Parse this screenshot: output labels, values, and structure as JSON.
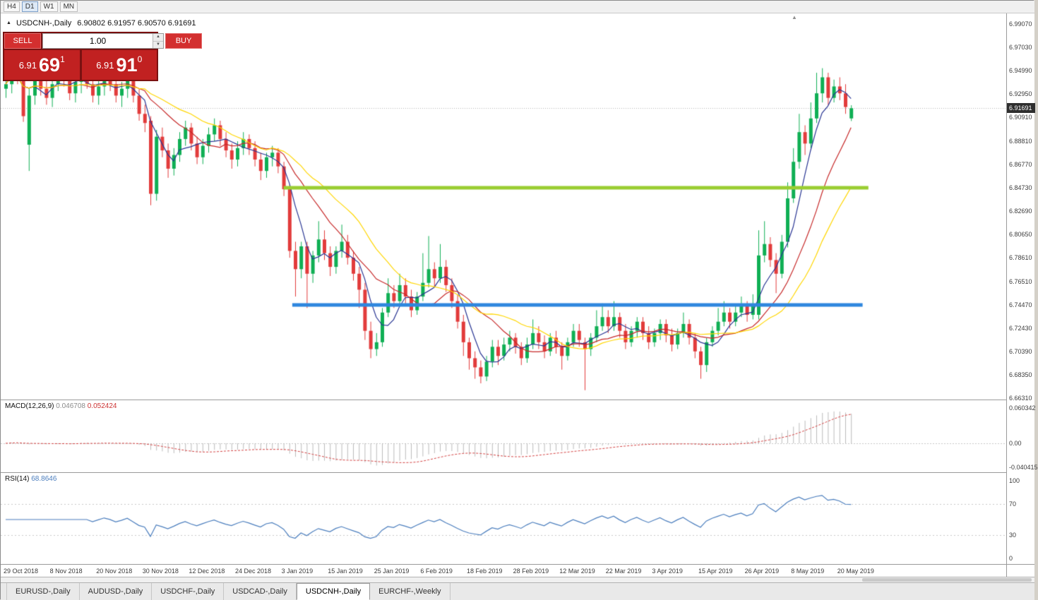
{
  "toolbar": {
    "timeframes": [
      "H4",
      "D1",
      "W1",
      "MN"
    ],
    "active": "D1"
  },
  "chart": {
    "title": "USDCNH-,Daily",
    "ohlc": "6.90802 6.91957 6.90570 6.91691"
  },
  "trade_panel": {
    "sell_label": "SELL",
    "buy_label": "BUY",
    "volume": "1.00",
    "bid": {
      "prefix": "6.91",
      "big": "69",
      "sup": "1"
    },
    "ask": {
      "prefix": "6.91",
      "big": "91",
      "sup": "0"
    }
  },
  "price_axis": {
    "labels": [
      "6.99070",
      "6.97030",
      "6.94990",
      "6.92950",
      "6.90910",
      "6.88810",
      "6.86770",
      "6.84730",
      "6.82690",
      "6.80650",
      "6.78610",
      "6.76510",
      "6.74470",
      "6.72430",
      "6.70390",
      "6.68350",
      "6.66310"
    ],
    "current": "6.91691"
  },
  "macd": {
    "label": "MACD(12,26,9)",
    "value_main": "0.046708",
    "value_signal": "0.052424",
    "axis": [
      "0.060342",
      "0.00",
      "-0.040415"
    ]
  },
  "rsi": {
    "label": "RSI(14)",
    "value": "68.8646"
  },
  "tabs": [
    {
      "label": "EURUSD-,Daily",
      "active": false
    },
    {
      "label": "AUDUSD-,Daily",
      "active": false
    },
    {
      "label": "USDCHF-,Daily",
      "active": false
    },
    {
      "label": "USDCAD-,Daily",
      "active": false
    },
    {
      "label": "USDCNH-,Daily",
      "active": true
    },
    {
      "label": "EURCHF-,Weekly",
      "active": false
    }
  ],
  "colors": {
    "candle_up": "#0faf54",
    "candle_down": "#e23b3b",
    "ma_fast": "#283593",
    "ma_mid": "#c62828",
    "ma_slow": "#ffd600",
    "level_green": "#9ACD32",
    "level_blue": "#2e86de",
    "macd_hist": "#bbbbbb",
    "macd_signal": "#d23f3f",
    "rsi_line": "#4a7dbd",
    "grid_dotted": "#b4b4b4"
  },
  "chart_data": {
    "type": "candlestick",
    "symbol": "USDCNH-",
    "timeframe": "Daily",
    "current_price": 6.91691,
    "last_ohlc": {
      "open": 6.90802,
      "high": 6.91957,
      "low": 6.9057,
      "close": 6.91691
    },
    "y_max": 6.9907,
    "y_min": 6.6631,
    "price_step": 0.0204,
    "x_ticks": [
      {
        "index": 0,
        "label": "29 Oct 2018"
      },
      {
        "index": 8,
        "label": "8 Nov 2018"
      },
      {
        "index": 16,
        "label": "20 Nov 2018"
      },
      {
        "index": 24,
        "label": "30 Nov 2018"
      },
      {
        "index": 32,
        "label": "12 Dec 2018"
      },
      {
        "index": 40,
        "label": "24 Dec 2018"
      },
      {
        "index": 48,
        "label": "3 Jan 2019"
      },
      {
        "index": 56,
        "label": "15 Jan 2019"
      },
      {
        "index": 64,
        "label": "25 Jan 2019"
      },
      {
        "index": 72,
        "label": "6 Feb 2019"
      },
      {
        "index": 80,
        "label": "18 Feb 2019"
      },
      {
        "index": 88,
        "label": "28 Feb 2019"
      },
      {
        "index": 96,
        "label": "12 Mar 2019"
      },
      {
        "index": 104,
        "label": "22 Mar 2019"
      },
      {
        "index": 112,
        "label": "3 Apr 2019"
      },
      {
        "index": 120,
        "label": "15 Apr 2019"
      },
      {
        "index": 128,
        "label": "26 Apr 2019"
      },
      {
        "index": 136,
        "label": "8 May 2019"
      },
      {
        "index": 144,
        "label": "20 May 2019"
      }
    ],
    "levels": [
      {
        "name": "resistance-line",
        "price": 6.8473,
        "color": "#9ACD32",
        "from_index": 48,
        "to_index": 149,
        "width": 5
      },
      {
        "name": "support-line",
        "price": 6.7447,
        "color": "#2e86de",
        "from_index": 49.5,
        "to_index": 148,
        "width": 5
      }
    ],
    "moving_averages": [
      {
        "period": 5,
        "color": "#283593"
      },
      {
        "period": 13,
        "color": "#c62828"
      },
      {
        "period": 21,
        "color": "#ffd600"
      }
    ],
    "macd": {
      "fast": 12,
      "slow": 26,
      "signal": 9,
      "current_main": 0.046708,
      "current_signal": 0.052424,
      "axis_max": 0.060342,
      "axis_min": -0.040415
    },
    "rsi": {
      "period": 14,
      "current": 68.8646,
      "levels": [
        100,
        70,
        30,
        0
      ],
      "dashed_levels": [
        70,
        30
      ]
    },
    "candles": [
      [
        6.934,
        6.958,
        6.926,
        6.938
      ],
      [
        6.938,
        6.956,
        6.93,
        6.952
      ],
      [
        6.952,
        6.96,
        6.938,
        6.945
      ],
      [
        6.945,
        6.95,
        6.905,
        6.91
      ],
      [
        6.885,
        6.935,
        6.862,
        6.928
      ],
      [
        6.928,
        6.95,
        6.92,
        6.945
      ],
      [
        6.945,
        6.952,
        6.928,
        6.934
      ],
      [
        6.934,
        6.944,
        6.92,
        6.926
      ],
      [
        6.926,
        6.942,
        6.918,
        6.938
      ],
      [
        6.938,
        6.955,
        6.932,
        6.95
      ],
      [
        6.95,
        6.958,
        6.936,
        6.942
      ],
      [
        6.942,
        6.948,
        6.924,
        6.93
      ],
      [
        6.93,
        6.946,
        6.922,
        6.94
      ],
      [
        6.94,
        6.952,
        6.93,
        6.948
      ],
      [
        6.948,
        6.954,
        6.934,
        6.938
      ],
      [
        6.938,
        6.944,
        6.922,
        6.928
      ],
      [
        6.928,
        6.942,
        6.92,
        6.936
      ],
      [
        6.936,
        6.95,
        6.928,
        6.944
      ],
      [
        6.944,
        6.952,
        6.932,
        6.938
      ],
      [
        6.938,
        6.944,
        6.922,
        6.928
      ],
      [
        6.928,
        6.94,
        6.918,
        6.934
      ],
      [
        6.934,
        6.948,
        6.926,
        6.942
      ],
      [
        6.942,
        6.946,
        6.922,
        6.928
      ],
      [
        6.928,
        6.934,
        6.906,
        6.912
      ],
      [
        6.912,
        6.92,
        6.896,
        6.904
      ],
      [
        6.906,
        6.91,
        6.832,
        6.842
      ],
      [
        6.842,
        6.898,
        6.836,
        6.892
      ],
      [
        6.892,
        6.9,
        6.874,
        6.88
      ],
      [
        6.88,
        6.886,
        6.856,
        6.864
      ],
      [
        6.864,
        6.882,
        6.858,
        6.876
      ],
      [
        6.876,
        6.896,
        6.87,
        6.89
      ],
      [
        6.89,
        6.906,
        6.884,
        6.9
      ],
      [
        6.9,
        6.904,
        6.88,
        6.886
      ],
      [
        6.886,
        6.892,
        6.868,
        6.874
      ],
      [
        6.874,
        6.89,
        6.868,
        6.884
      ],
      [
        6.884,
        6.9,
        6.878,
        6.894
      ],
      [
        6.894,
        6.908,
        6.888,
        6.902
      ],
      [
        6.902,
        6.906,
        6.884,
        6.89
      ],
      [
        6.89,
        6.896,
        6.874,
        6.88
      ],
      [
        6.88,
        6.886,
        6.864,
        6.872
      ],
      [
        6.872,
        6.888,
        6.866,
        6.882
      ],
      [
        6.882,
        6.896,
        6.876,
        6.89
      ],
      [
        6.89,
        6.894,
        6.876,
        6.882
      ],
      [
        6.882,
        6.888,
        6.866,
        6.872
      ],
      [
        6.872,
        6.878,
        6.854,
        6.862
      ],
      [
        6.862,
        6.878,
        6.856,
        6.874
      ],
      [
        6.874,
        6.884,
        6.866,
        6.878
      ],
      [
        6.878,
        6.882,
        6.86,
        6.866
      ],
      [
        6.866,
        6.87,
        6.84,
        6.846
      ],
      [
        6.846,
        6.85,
        6.786,
        6.792
      ],
      [
        6.792,
        6.8,
        6.752,
        6.776
      ],
      [
        6.776,
        6.8,
        6.768,
        6.796
      ],
      [
        6.796,
        6.8,
        6.742,
        6.772
      ],
      [
        6.772,
        6.792,
        6.764,
        6.788
      ],
      [
        6.788,
        6.818,
        6.782,
        6.802
      ],
      [
        6.802,
        6.81,
        6.784,
        6.79
      ],
      [
        6.79,
        6.796,
        6.77,
        6.778
      ],
      [
        6.778,
        6.796,
        6.772,
        6.792
      ],
      [
        6.792,
        6.815,
        6.786,
        6.8
      ],
      [
        6.8,
        6.806,
        6.78,
        6.786
      ],
      [
        6.786,
        6.792,
        6.766,
        6.772
      ],
      [
        6.772,
        6.778,
        6.742,
        6.758
      ],
      [
        6.758,
        6.764,
        6.714,
        6.722
      ],
      [
        6.722,
        6.73,
        6.698,
        6.706
      ],
      [
        6.706,
        6.72,
        6.7,
        6.712
      ],
      [
        6.712,
        6.742,
        6.708,
        6.738
      ],
      [
        6.738,
        6.768,
        6.734,
        6.755
      ],
      [
        6.755,
        6.762,
        6.742,
        6.748
      ],
      [
        6.748,
        6.772,
        6.744,
        6.762
      ],
      [
        6.762,
        6.768,
        6.746,
        6.752
      ],
      [
        6.752,
        6.758,
        6.734,
        6.74
      ],
      [
        6.74,
        6.756,
        6.736,
        6.752
      ],
      [
        6.752,
        6.79,
        6.748,
        6.764
      ],
      [
        6.764,
        6.805,
        6.76,
        6.776
      ],
      [
        6.776,
        6.782,
        6.76,
        6.768
      ],
      [
        6.768,
        6.798,
        6.764,
        6.778
      ],
      [
        6.778,
        6.784,
        6.756,
        6.762
      ],
      [
        6.762,
        6.768,
        6.742,
        6.748
      ],
      [
        6.748,
        6.754,
        6.724,
        6.73
      ],
      [
        6.73,
        6.736,
        6.7,
        6.712
      ],
      [
        6.712,
        6.716,
        6.688,
        6.698
      ],
      [
        6.698,
        6.704,
        6.68,
        6.69
      ],
      [
        6.69,
        6.696,
        6.676,
        6.682
      ],
      [
        6.682,
        6.7,
        6.678,
        6.695
      ],
      [
        6.695,
        6.714,
        6.69,
        6.708
      ],
      [
        6.708,
        6.714,
        6.692,
        6.7
      ],
      [
        6.7,
        6.716,
        6.696,
        6.71
      ],
      [
        6.71,
        6.722,
        6.704,
        6.716
      ],
      [
        6.716,
        6.72,
        6.702,
        6.708
      ],
      [
        6.708,
        6.712,
        6.692,
        6.698
      ],
      [
        6.698,
        6.716,
        6.694,
        6.71
      ],
      [
        6.71,
        6.732,
        6.706,
        6.72
      ],
      [
        6.72,
        6.726,
        6.706,
        6.712
      ],
      [
        6.712,
        6.718,
        6.698,
        6.704
      ],
      [
        6.704,
        6.72,
        6.7,
        6.716
      ],
      [
        6.716,
        6.722,
        6.702,
        6.708
      ],
      [
        6.708,
        6.712,
        6.688,
        6.7
      ],
      [
        6.7,
        6.716,
        6.696,
        6.712
      ],
      [
        6.712,
        6.728,
        6.708,
        6.722
      ],
      [
        6.722,
        6.728,
        6.708,
        6.714
      ],
      [
        6.712,
        6.716,
        6.67,
        6.706
      ],
      [
        6.706,
        6.72,
        6.7,
        6.716
      ],
      [
        6.716,
        6.74,
        6.712,
        6.726
      ],
      [
        6.726,
        6.746,
        6.722,
        6.734
      ],
      [
        6.734,
        6.74,
        6.72,
        6.726
      ],
      [
        6.726,
        6.748,
        6.722,
        6.734
      ],
      [
        6.734,
        6.738,
        6.716,
        6.722
      ],
      [
        6.722,
        6.728,
        6.706,
        6.712
      ],
      [
        6.712,
        6.726,
        6.708,
        6.722
      ],
      [
        6.722,
        6.734,
        6.716,
        6.73
      ],
      [
        6.73,
        6.734,
        6.714,
        6.72
      ],
      [
        6.72,
        6.726,
        6.706,
        6.712
      ],
      [
        6.712,
        6.724,
        6.708,
        6.72
      ],
      [
        6.72,
        6.732,
        6.714,
        6.728
      ],
      [
        6.728,
        6.732,
        6.712,
        6.718
      ],
      [
        6.718,
        6.724,
        6.704,
        6.71
      ],
      [
        6.71,
        6.724,
        6.706,
        6.72
      ],
      [
        6.72,
        6.738,
        6.716,
        6.728
      ],
      [
        6.728,
        6.732,
        6.71,
        6.716
      ],
      [
        6.716,
        6.72,
        6.698,
        6.704
      ],
      [
        6.704,
        6.708,
        6.68,
        6.692
      ],
      [
        6.692,
        6.716,
        6.686,
        6.712
      ],
      [
        6.712,
        6.726,
        6.708,
        6.722
      ],
      [
        6.722,
        6.742,
        6.718,
        6.73
      ],
      [
        6.73,
        6.748,
        6.726,
        6.738
      ],
      [
        6.738,
        6.742,
        6.724,
        6.73
      ],
      [
        6.73,
        6.744,
        6.726,
        6.738
      ],
      [
        6.738,
        6.752,
        6.734,
        6.744
      ],
      [
        6.744,
        6.748,
        6.73,
        6.736
      ],
      [
        6.736,
        6.754,
        6.732,
        6.744
      ],
      [
        6.736,
        6.81,
        6.732,
        6.788
      ],
      [
        6.788,
        6.818,
        6.782,
        6.798
      ],
      [
        6.798,
        6.804,
        6.778,
        6.784
      ],
      [
        6.784,
        6.79,
        6.755,
        6.772
      ],
      [
        6.772,
        6.806,
        6.768,
        6.8
      ],
      [
        6.8,
        6.852,
        6.795,
        6.838
      ],
      [
        6.838,
        6.882,
        6.834,
        6.87
      ],
      [
        6.87,
        6.912,
        6.864,
        6.896
      ],
      [
        6.896,
        6.902,
        6.876,
        6.886
      ],
      [
        6.886,
        6.922,
        6.882,
        6.908
      ],
      [
        6.908,
        6.948,
        6.904,
        6.93
      ],
      [
        6.93,
        6.952,
        6.922,
        6.944
      ],
      [
        6.944,
        6.948,
        6.92,
        6.926
      ],
      [
        6.926,
        6.942,
        6.922,
        6.936
      ],
      [
        6.936,
        6.944,
        6.924,
        6.93
      ],
      [
        6.93,
        6.938,
        6.912,
        6.918
      ],
      [
        6.90802,
        6.91957,
        6.9057,
        6.91691
      ]
    ]
  }
}
